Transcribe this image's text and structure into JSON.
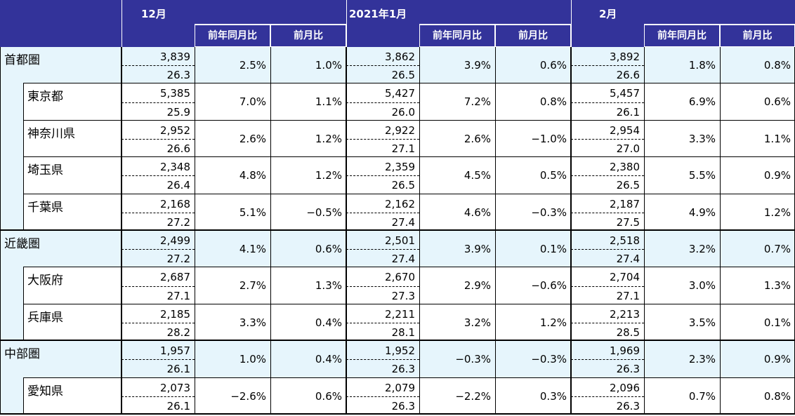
{
  "header": {
    "months": [
      "12月",
      "2021年1月",
      "2月"
    ],
    "yoy_label": "前年同月比",
    "mom_label": "前月比"
  },
  "rows": [
    {
      "name": "首都圏",
      "level": 1,
      "v1": "3,839",
      "s1": "26.3",
      "y1": "2.5%",
      "m1": "1.0%",
      "v2": "3,862",
      "s2": "26.5",
      "y2": "3.9%",
      "m2": "0.6%",
      "v3": "3,892",
      "s3": "26.6",
      "y3": "1.8%",
      "m3": "0.8%"
    },
    {
      "name": "東京都",
      "level": 2,
      "v1": "5,385",
      "s1": "25.9",
      "y1": "7.0%",
      "m1": "1.1%",
      "v2": "5,427",
      "s2": "26.0",
      "y2": "7.2%",
      "m2": "0.8%",
      "v3": "5,457",
      "s3": "26.1",
      "y3": "6.9%",
      "m3": "0.6%"
    },
    {
      "name": "神奈川県",
      "level": 2,
      "v1": "2,952",
      "s1": "26.6",
      "y1": "2.6%",
      "m1": "1.2%",
      "v2": "2,922",
      "s2": "27.1",
      "y2": "2.6%",
      "m2": "−1.0%",
      "v3": "2,954",
      "s3": "27.0",
      "y3": "3.3%",
      "m3": "1.1%"
    },
    {
      "name": "埼玉県",
      "level": 2,
      "v1": "2,348",
      "s1": "26.4",
      "y1": "4.8%",
      "m1": "1.2%",
      "v2": "2,359",
      "s2": "26.5",
      "y2": "4.5%",
      "m2": "0.5%",
      "v3": "2,380",
      "s3": "26.5",
      "y3": "5.5%",
      "m3": "0.9%"
    },
    {
      "name": "千葉県",
      "level": 2,
      "v1": "2,168",
      "s1": "27.2",
      "y1": "5.1%",
      "m1": "−0.5%",
      "v2": "2,162",
      "s2": "27.4",
      "y2": "4.6%",
      "m2": "−0.3%",
      "v3": "2,187",
      "s3": "27.5",
      "y3": "4.9%",
      "m3": "1.2%"
    },
    {
      "name": "近畿圏",
      "level": 1,
      "v1": "2,499",
      "s1": "27.2",
      "y1": "4.1%",
      "m1": "0.6%",
      "v2": "2,501",
      "s2": "27.4",
      "y2": "3.9%",
      "m2": "0.1%",
      "v3": "2,518",
      "s3": "27.4",
      "y3": "3.2%",
      "m3": "0.7%"
    },
    {
      "name": "大阪府",
      "level": 2,
      "v1": "2,687",
      "s1": "27.1",
      "y1": "2.7%",
      "m1": "1.3%",
      "v2": "2,670",
      "s2": "27.3",
      "y2": "2.9%",
      "m2": "−0.6%",
      "v3": "2,704",
      "s3": "27.1",
      "y3": "3.0%",
      "m3": "1.3%"
    },
    {
      "name": "兵庫県",
      "level": 2,
      "v1": "2,185",
      "s1": "28.2",
      "y1": "3.3%",
      "m1": "0.4%",
      "v2": "2,211",
      "s2": "28.1",
      "y2": "3.2%",
      "m2": "1.2%",
      "v3": "2,213",
      "s3": "28.5",
      "y3": "3.5%",
      "m3": "0.1%"
    },
    {
      "name": "中部圏",
      "level": 1,
      "v1": "1,957",
      "s1": "26.1",
      "y1": "1.0%",
      "m1": "0.4%",
      "v2": "1,952",
      "s2": "26.3",
      "y2": "−0.3%",
      "m2": "−0.3%",
      "v3": "1,969",
      "s3": "26.3",
      "y3": "2.3%",
      "m3": "0.9%"
    },
    {
      "name": "愛知県",
      "level": 2,
      "v1": "2,073",
      "s1": "26.1",
      "y1": "−2.6%",
      "m1": "0.6%",
      "v2": "2,079",
      "s2": "26.3",
      "y2": "−2.2%",
      "m2": "0.3%",
      "v3": "2,096",
      "s3": "26.3",
      "y3": "0.7%",
      "m3": "0.8%"
    }
  ],
  "colors": {
    "header_bg": "#33339a",
    "region_fill": "#e6f5fc"
  }
}
